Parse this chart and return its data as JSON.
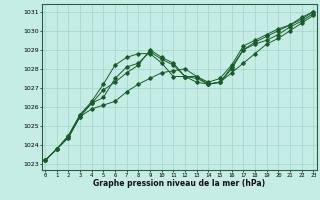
{
  "title": "",
  "xlabel": "Graphe pression niveau de la mer (hPa)",
  "ylabel": "",
  "bg_color": "#c6ece6",
  "grid_color": "#a8d8d0",
  "line_color": "#1a5c28",
  "xlim": [
    -0.3,
    23.3
  ],
  "ylim": [
    1022.7,
    1031.4
  ],
  "xticks": [
    0,
    1,
    2,
    3,
    4,
    5,
    6,
    7,
    8,
    9,
    10,
    11,
    12,
    13,
    14,
    15,
    16,
    17,
    18,
    19,
    20,
    21,
    22,
    23
  ],
  "yticks": [
    1023,
    1024,
    1025,
    1026,
    1027,
    1028,
    1029,
    1030,
    1031
  ],
  "series": [
    [
      1023.2,
      1023.8,
      1024.4,
      1025.5,
      1025.9,
      1026.1,
      1026.3,
      1026.8,
      1027.2,
      1027.5,
      1027.8,
      1027.9,
      1028.0,
      1027.6,
      1027.2,
      1027.3,
      1027.8,
      1028.3,
      1028.8,
      1029.3,
      1029.6,
      1030.0,
      1030.4,
      1030.8
    ],
    [
      1023.2,
      1023.8,
      1024.4,
      1025.5,
      1026.2,
      1026.5,
      1027.5,
      1028.1,
      1028.3,
      1028.9,
      1028.5,
      1028.2,
      1027.6,
      1027.5,
      1027.2,
      1027.3,
      1028.0,
      1029.0,
      1029.3,
      1029.5,
      1029.8,
      1030.2,
      1030.5,
      1030.9
    ],
    [
      1023.2,
      1023.8,
      1024.5,
      1025.6,
      1026.2,
      1026.9,
      1027.3,
      1027.8,
      1028.2,
      1029.0,
      1028.6,
      1028.3,
      1027.6,
      1027.6,
      1027.3,
      1027.5,
      1028.2,
      1029.2,
      1029.5,
      1029.8,
      1030.1,
      1030.3,
      1030.6,
      1031.0
    ],
    [
      1023.2,
      1023.8,
      1024.5,
      1025.6,
      1026.3,
      1027.2,
      1028.2,
      1028.6,
      1028.8,
      1028.8,
      1028.3,
      1027.6,
      1027.6,
      1027.3,
      1027.2,
      1027.3,
      1028.1,
      1029.0,
      1029.4,
      1029.7,
      1030.0,
      1030.3,
      1030.7,
      1031.0
    ]
  ]
}
